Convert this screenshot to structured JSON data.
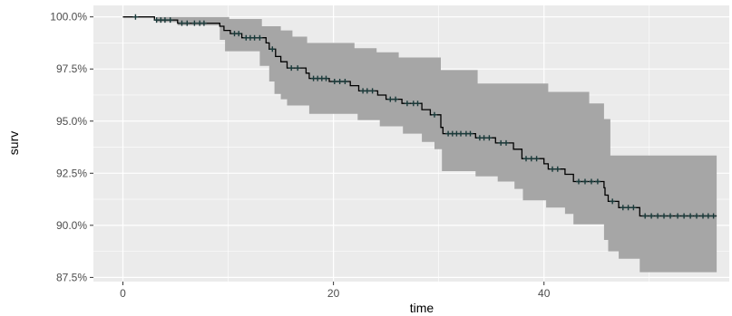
{
  "chart_data": {
    "type": "line",
    "subtype": "survival-step",
    "xlabel": "time",
    "ylabel": "surv",
    "xlim": [
      -2.8,
      57.6
    ],
    "ylim": [
      87.3,
      100.55
    ],
    "x_ticks": [
      0,
      20,
      40
    ],
    "y_ticks": [
      {
        "value": 87.5,
        "label": "87.5%"
      },
      {
        "value": 90.0,
        "label": "90.0%"
      },
      {
        "value": 92.5,
        "label": "92.5%"
      },
      {
        "value": 95.0,
        "label": "95.0%"
      },
      {
        "value": 97.5,
        "label": "97.5%"
      },
      {
        "value": 100.0,
        "label": "100.0%"
      }
    ],
    "grid": true,
    "panel_background": "#ebebeb",
    "grid_color": "#ffffff",
    "line_color": "#000000",
    "band_color": "#a6a6a6",
    "censor_color": "#1b3a3a",
    "survival": [
      {
        "x": 0,
        "y": 100.0
      },
      {
        "x": 3.0,
        "y": 99.85
      },
      {
        "x": 5.2,
        "y": 99.7
      },
      {
        "x": 9.2,
        "y": 99.55
      },
      {
        "x": 9.6,
        "y": 99.35
      },
      {
        "x": 10.2,
        "y": 99.2
      },
      {
        "x": 11.3,
        "y": 99.0
      },
      {
        "x": 13.6,
        "y": 98.75
      },
      {
        "x": 13.9,
        "y": 98.45
      },
      {
        "x": 14.5,
        "y": 98.1
      },
      {
        "x": 15.0,
        "y": 97.85
      },
      {
        "x": 15.6,
        "y": 97.55
      },
      {
        "x": 17.4,
        "y": 97.3
      },
      {
        "x": 17.7,
        "y": 97.05
      },
      {
        "x": 19.6,
        "y": 96.9
      },
      {
        "x": 21.6,
        "y": 96.7
      },
      {
        "x": 22.4,
        "y": 96.45
      },
      {
        "x": 24.2,
        "y": 96.25
      },
      {
        "x": 25.0,
        "y": 96.05
      },
      {
        "x": 26.5,
        "y": 95.85
      },
      {
        "x": 28.4,
        "y": 95.55
      },
      {
        "x": 29.2,
        "y": 95.3
      },
      {
        "x": 30.2,
        "y": 94.7
      },
      {
        "x": 30.4,
        "y": 94.4
      },
      {
        "x": 33.5,
        "y": 94.2
      },
      {
        "x": 35.4,
        "y": 93.95
      },
      {
        "x": 37.1,
        "y": 93.65
      },
      {
        "x": 37.9,
        "y": 93.2
      },
      {
        "x": 40.0,
        "y": 92.95
      },
      {
        "x": 40.4,
        "y": 92.7
      },
      {
        "x": 42.0,
        "y": 92.45
      },
      {
        "x": 42.8,
        "y": 92.1
      },
      {
        "x": 45.7,
        "y": 91.8
      },
      {
        "x": 45.8,
        "y": 91.45
      },
      {
        "x": 46.1,
        "y": 91.15
      },
      {
        "x": 47.1,
        "y": 90.85
      },
      {
        "x": 49.1,
        "y": 90.45
      }
    ],
    "survival_end_x": 56.4,
    "upper": [
      {
        "x": 0,
        "y": 100.0
      },
      {
        "x": 8.2,
        "y": 100.0
      },
      {
        "x": 10.1,
        "y": 99.9
      },
      {
        "x": 13.2,
        "y": 99.55
      },
      {
        "x": 15.0,
        "y": 99.35
      },
      {
        "x": 16.1,
        "y": 99.05
      },
      {
        "x": 17.5,
        "y": 98.75
      },
      {
        "x": 22.0,
        "y": 98.5
      },
      {
        "x": 24.1,
        "y": 98.3
      },
      {
        "x": 26.2,
        "y": 98.05
      },
      {
        "x": 30.2,
        "y": 97.45
      },
      {
        "x": 33.7,
        "y": 96.8
      },
      {
        "x": 40.4,
        "y": 96.4
      },
      {
        "x": 44.3,
        "y": 95.85
      },
      {
        "x": 45.7,
        "y": 95.1
      },
      {
        "x": 46.3,
        "y": 93.35
      }
    ],
    "lower": [
      {
        "x": 0,
        "y": 100.0
      },
      {
        "x": 3.2,
        "y": 99.75
      },
      {
        "x": 5.2,
        "y": 99.6
      },
      {
        "x": 9.2,
        "y": 98.9
      },
      {
        "x": 9.7,
        "y": 98.35
      },
      {
        "x": 13.0,
        "y": 97.65
      },
      {
        "x": 13.9,
        "y": 96.9
      },
      {
        "x": 14.4,
        "y": 96.3
      },
      {
        "x": 15.0,
        "y": 96.05
      },
      {
        "x": 15.6,
        "y": 95.75
      },
      {
        "x": 17.7,
        "y": 95.35
      },
      {
        "x": 22.3,
        "y": 95.05
      },
      {
        "x": 24.4,
        "y": 94.75
      },
      {
        "x": 26.6,
        "y": 94.4
      },
      {
        "x": 28.4,
        "y": 94.0
      },
      {
        "x": 29.6,
        "y": 93.65
      },
      {
        "x": 30.3,
        "y": 92.6
      },
      {
        "x": 33.5,
        "y": 92.35
      },
      {
        "x": 35.6,
        "y": 92.1
      },
      {
        "x": 37.2,
        "y": 91.75
      },
      {
        "x": 38.0,
        "y": 91.2
      },
      {
        "x": 40.2,
        "y": 90.85
      },
      {
        "x": 42.0,
        "y": 90.55
      },
      {
        "x": 42.8,
        "y": 90.05
      },
      {
        "x": 45.7,
        "y": 89.3
      },
      {
        "x": 46.1,
        "y": 88.75
      },
      {
        "x": 47.1,
        "y": 88.4
      },
      {
        "x": 49.1,
        "y": 87.75
      }
    ],
    "band_end_x": 56.4,
    "censored": [
      {
        "x": 1.2,
        "y": 100.0
      },
      {
        "x": 3.2,
        "y": 99.85
      },
      {
        "x": 3.6,
        "y": 99.85
      },
      {
        "x": 4.0,
        "y": 99.85
      },
      {
        "x": 4.5,
        "y": 99.85
      },
      {
        "x": 5.6,
        "y": 99.7
      },
      {
        "x": 6.1,
        "y": 99.7
      },
      {
        "x": 6.8,
        "y": 99.7
      },
      {
        "x": 7.3,
        "y": 99.7
      },
      {
        "x": 7.7,
        "y": 99.7
      },
      {
        "x": 10.6,
        "y": 99.2
      },
      {
        "x": 11.0,
        "y": 99.2
      },
      {
        "x": 11.7,
        "y": 99.0
      },
      {
        "x": 12.1,
        "y": 99.0
      },
      {
        "x": 12.5,
        "y": 99.0
      },
      {
        "x": 13.0,
        "y": 99.0
      },
      {
        "x": 14.2,
        "y": 98.45
      },
      {
        "x": 16.0,
        "y": 97.55
      },
      {
        "x": 16.6,
        "y": 97.55
      },
      {
        "x": 18.1,
        "y": 97.05
      },
      {
        "x": 18.5,
        "y": 97.05
      },
      {
        "x": 18.9,
        "y": 97.05
      },
      {
        "x": 19.3,
        "y": 97.05
      },
      {
        "x": 20.1,
        "y": 96.9
      },
      {
        "x": 20.6,
        "y": 96.9
      },
      {
        "x": 21.1,
        "y": 96.9
      },
      {
        "x": 22.8,
        "y": 96.45
      },
      {
        "x": 23.2,
        "y": 96.45
      },
      {
        "x": 23.7,
        "y": 96.45
      },
      {
        "x": 25.4,
        "y": 96.05
      },
      {
        "x": 25.9,
        "y": 96.05
      },
      {
        "x": 27.0,
        "y": 95.85
      },
      {
        "x": 27.6,
        "y": 95.85
      },
      {
        "x": 28.0,
        "y": 95.85
      },
      {
        "x": 29.6,
        "y": 95.3
      },
      {
        "x": 30.9,
        "y": 94.4
      },
      {
        "x": 31.3,
        "y": 94.4
      },
      {
        "x": 31.7,
        "y": 94.4
      },
      {
        "x": 32.1,
        "y": 94.4
      },
      {
        "x": 32.6,
        "y": 94.4
      },
      {
        "x": 33.0,
        "y": 94.4
      },
      {
        "x": 33.9,
        "y": 94.2
      },
      {
        "x": 34.3,
        "y": 94.2
      },
      {
        "x": 34.8,
        "y": 94.2
      },
      {
        "x": 35.9,
        "y": 93.95
      },
      {
        "x": 36.4,
        "y": 93.95
      },
      {
        "x": 38.3,
        "y": 93.2
      },
      {
        "x": 38.8,
        "y": 93.2
      },
      {
        "x": 39.3,
        "y": 93.2
      },
      {
        "x": 40.8,
        "y": 92.7
      },
      {
        "x": 41.3,
        "y": 92.7
      },
      {
        "x": 43.3,
        "y": 92.1
      },
      {
        "x": 43.9,
        "y": 92.1
      },
      {
        "x": 44.5,
        "y": 92.1
      },
      {
        "x": 45.1,
        "y": 92.1
      },
      {
        "x": 46.5,
        "y": 91.15
      },
      {
        "x": 47.5,
        "y": 90.85
      },
      {
        "x": 48.0,
        "y": 90.85
      },
      {
        "x": 48.5,
        "y": 90.85
      },
      {
        "x": 49.6,
        "y": 90.45
      },
      {
        "x": 50.2,
        "y": 90.45
      },
      {
        "x": 50.8,
        "y": 90.45
      },
      {
        "x": 51.4,
        "y": 90.45
      },
      {
        "x": 52.0,
        "y": 90.45
      },
      {
        "x": 52.7,
        "y": 90.45
      },
      {
        "x": 53.3,
        "y": 90.45
      },
      {
        "x": 53.9,
        "y": 90.45
      },
      {
        "x": 54.5,
        "y": 90.45
      },
      {
        "x": 55.1,
        "y": 90.45
      },
      {
        "x": 55.6,
        "y": 90.45
      },
      {
        "x": 56.1,
        "y": 90.45
      }
    ]
  }
}
